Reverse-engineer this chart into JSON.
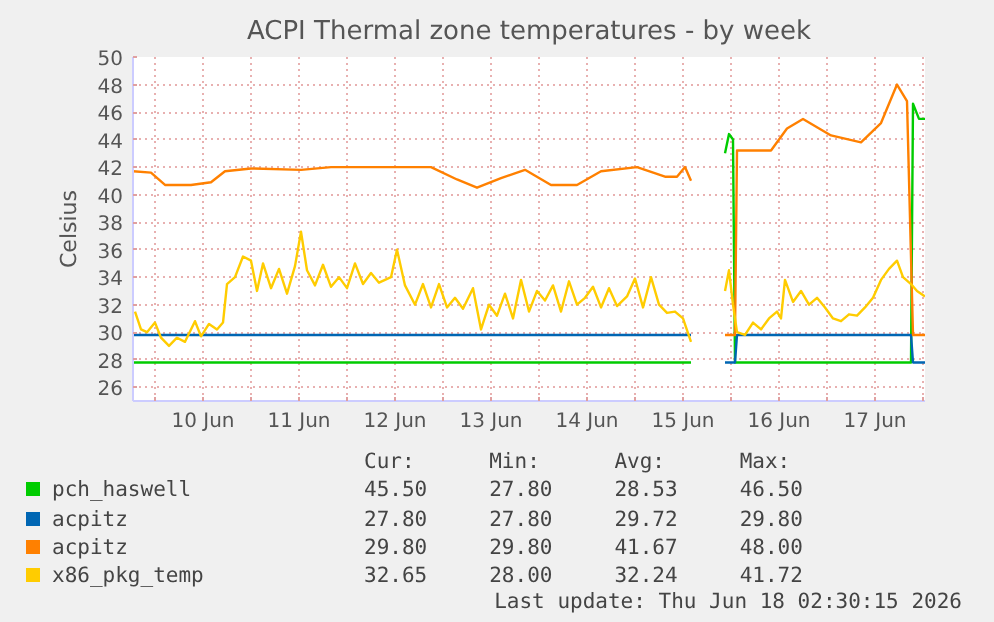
{
  "chart_data": {
    "type": "line",
    "title": "ACPI Thermal zone temperatures - by week",
    "ylabel": "Celsius",
    "xlim": [
      "2026-06-09T18:30",
      "2026-06-18T00:30"
    ],
    "xticks": [
      {
        "value": "2026-06-10T00:00",
        "label": null
      },
      {
        "value": "2026-06-10T12:00",
        "label": "10 Jun"
      },
      {
        "value": "2026-06-11T00:00",
        "label": null
      },
      {
        "value": "2026-06-11T12:00",
        "label": "11 Jun"
      },
      {
        "value": "2026-06-12T00:00",
        "label": null
      },
      {
        "value": "2026-06-12T12:00",
        "label": "12 Jun"
      },
      {
        "value": "2026-06-13T00:00",
        "label": null
      },
      {
        "value": "2026-06-13T12:00",
        "label": "13 Jun"
      },
      {
        "value": "2026-06-14T00:00",
        "label": null
      },
      {
        "value": "2026-06-14T12:00",
        "label": "14 Jun"
      },
      {
        "value": "2026-06-15T00:00",
        "label": null
      },
      {
        "value": "2026-06-15T12:00",
        "label": "15 Jun"
      },
      {
        "value": "2026-06-16T00:00",
        "label": null
      },
      {
        "value": "2026-06-16T12:00",
        "label": "16 Jun"
      },
      {
        "value": "2026-06-17T00:00",
        "label": null
      },
      {
        "value": "2026-06-17T12:00",
        "label": "17 Jun"
      },
      {
        "value": "2026-06-18T00:00",
        "label": null
      }
    ],
    "ylim": [
      25,
      50
    ],
    "yticks": [
      26,
      28,
      30,
      32,
      34,
      36,
      38,
      40,
      42,
      44,
      46,
      48,
      50
    ],
    "grid": true,
    "legend": "bottom",
    "marker": "none",
    "line_style": "solid",
    "series": [
      {
        "name": "pch_haswell",
        "color": "#00cc00",
        "x": [
          "2026-06-09T18:30",
          "2026-06-15T14:00",
          "2026-06-15T18:00",
          "2026-06-15T22:30",
          "2026-06-15T23:30",
          "2026-06-16T00:30",
          "2026-06-16T01:00",
          "2026-06-17T21:00",
          "2026-06-17T21:30",
          "2026-06-17T23:00",
          "2026-06-18T00:30"
        ],
        "values": [
          27.8,
          27.8,
          null,
          43.0,
          44.4,
          44.0,
          27.8,
          27.8,
          46.6,
          45.5,
          45.5
        ]
      },
      {
        "name": "acpitz",
        "color": "#0066b3",
        "x": [
          "2026-06-09T18:30",
          "2026-06-15T14:00",
          "2026-06-15T18:00",
          "2026-06-15T22:30",
          "2026-06-16T01:00",
          "2026-06-16T01:30",
          "2026-06-17T21:00",
          "2026-06-17T21:30",
          "2026-06-18T00:30"
        ],
        "values": [
          29.8,
          29.8,
          null,
          27.8,
          27.8,
          29.8,
          29.8,
          27.8,
          27.8
        ]
      },
      {
        "name": "acpitz",
        "color": "#ff8000",
        "x": [
          "2026-06-09T18:30",
          "2026-06-09T23:00",
          "2026-06-10T02:30",
          "2026-06-10T09:00",
          "2026-06-10T14:00",
          "2026-06-10T17:30",
          "2026-06-11T00:00",
          "2026-06-11T12:30",
          "2026-06-11T20:00",
          "2026-06-12T21:00",
          "2026-06-13T03:30",
          "2026-06-13T08:30",
          "2026-06-13T14:30",
          "2026-06-13T20:30",
          "2026-06-14T03:00",
          "2026-06-14T09:30",
          "2026-06-14T15:30",
          "2026-06-15T00:30",
          "2026-06-15T07:30",
          "2026-06-15T10:30",
          "2026-06-15T12:30",
          "2026-06-15T14:00",
          "2026-06-15T18:00",
          "2026-06-15T22:30",
          "2026-06-16T01:00",
          "2026-06-16T01:30",
          "2026-06-16T10:00",
          "2026-06-16T14:00",
          "2026-06-16T18:00",
          "2026-06-17T01:00",
          "2026-06-17T08:30",
          "2026-06-17T13:30",
          "2026-06-17T17:30",
          "2026-06-17T20:00",
          "2026-06-17T21:30",
          "2026-06-18T00:30"
        ],
        "values": [
          41.7,
          41.6,
          40.7,
          40.7,
          40.9,
          41.7,
          41.9,
          41.8,
          42.0,
          42.0,
          41.1,
          40.5,
          41.2,
          41.8,
          40.7,
          40.7,
          41.7,
          42.0,
          41.3,
          41.3,
          42.0,
          41.0,
          null,
          29.8,
          29.8,
          43.2,
          43.2,
          44.8,
          45.5,
          44.3,
          43.8,
          45.2,
          48.0,
          46.8,
          29.8,
          29.8
        ]
      },
      {
        "name": "x86_pkg_temp",
        "color": "#ffcc00",
        "x": [
          "2026-06-09T19:00",
          "2026-06-09T20:30",
          "2026-06-09T22:00",
          "2026-06-10T00:00",
          "2026-06-10T01:30",
          "2026-06-10T03:30",
          "2026-06-10T05:30",
          "2026-06-10T07:30",
          "2026-06-10T10:00",
          "2026-06-10T11:30",
          "2026-06-10T13:30",
          "2026-06-10T15:30",
          "2026-06-10T17:00",
          "2026-06-10T18:00",
          "2026-06-10T20:00",
          "2026-06-10T22:00",
          "2026-06-11T00:00",
          "2026-06-11T01:30",
          "2026-06-11T03:00",
          "2026-06-11T05:00",
          "2026-06-11T07:00",
          "2026-06-11T09:00",
          "2026-06-11T11:00",
          "2026-06-11T12:30",
          "2026-06-11T14:00",
          "2026-06-11T16:00",
          "2026-06-11T18:00",
          "2026-06-11T20:00",
          "2026-06-11T22:00",
          "2026-06-12T00:00",
          "2026-06-12T02:00",
          "2026-06-12T04:00",
          "2026-06-12T06:00",
          "2026-06-12T08:00",
          "2026-06-12T11:00",
          "2026-06-12T12:30",
          "2026-06-12T14:30",
          "2026-06-12T17:00",
          "2026-06-12T19:00",
          "2026-06-12T21:00",
          "2026-06-12T23:00",
          "2026-06-13T01:00",
          "2026-06-13T03:00",
          "2026-06-13T05:00",
          "2026-06-13T07:30",
          "2026-06-13T09:30",
          "2026-06-13T11:30",
          "2026-06-13T13:30",
          "2026-06-13T15:30",
          "2026-06-13T17:30",
          "2026-06-13T19:30",
          "2026-06-13T21:30",
          "2026-06-13T23:30",
          "2026-06-14T01:30",
          "2026-06-14T03:30",
          "2026-06-14T05:30",
          "2026-06-14T07:30",
          "2026-06-14T09:30",
          "2026-06-14T11:30",
          "2026-06-14T13:30",
          "2026-06-14T15:30",
          "2026-06-14T17:30",
          "2026-06-14T19:30",
          "2026-06-14T22:00",
          "2026-06-15T00:00",
          "2026-06-15T02:00",
          "2026-06-15T04:00",
          "2026-06-15T06:00",
          "2026-06-15T08:00",
          "2026-06-15T10:00",
          "2026-06-15T12:00",
          "2026-06-15T14:00",
          "2026-06-15T18:00",
          "2026-06-15T22:30",
          "2026-06-15T23:30",
          "2026-06-16T00:30",
          "2026-06-16T01:30",
          "2026-06-16T03:30",
          "2026-06-16T05:30",
          "2026-06-16T07:30",
          "2026-06-16T09:30",
          "2026-06-16T11:30",
          "2026-06-16T12:30",
          "2026-06-16T13:30",
          "2026-06-16T15:30",
          "2026-06-16T17:30",
          "2026-06-16T19:30",
          "2026-06-16T21:30",
          "2026-06-16T23:30",
          "2026-06-17T01:30",
          "2026-06-17T03:30",
          "2026-06-17T05:30",
          "2026-06-17T07:30",
          "2026-06-17T09:30",
          "2026-06-17T11:30",
          "2026-06-17T13:30",
          "2026-06-17T15:30",
          "2026-06-17T17:30",
          "2026-06-17T19:00",
          "2026-06-17T21:00",
          "2026-06-17T22:30",
          "2026-06-18T00:30"
        ],
        "values": [
          31.5,
          30.2,
          30.0,
          30.7,
          29.6,
          29.0,
          29.6,
          29.3,
          30.8,
          29.7,
          30.6,
          30.2,
          30.7,
          33.5,
          34.0,
          35.5,
          35.2,
          33.0,
          35.0,
          33.2,
          34.6,
          32.8,
          34.8,
          37.3,
          34.5,
          33.4,
          34.9,
          33.3,
          34.0,
          33.2,
          35.0,
          33.5,
          34.3,
          33.6,
          34.0,
          36.0,
          33.4,
          32.0,
          33.5,
          31.8,
          33.5,
          31.8,
          32.5,
          31.7,
          33.2,
          30.2,
          32.0,
          31.2,
          32.8,
          31.0,
          33.8,
          31.5,
          33.0,
          32.3,
          33.4,
          31.5,
          33.7,
          32.0,
          32.5,
          33.3,
          31.8,
          33.2,
          31.9,
          32.6,
          33.9,
          31.8,
          34.0,
          32.0,
          31.4,
          31.5,
          31.0,
          29.3,
          null,
          33.0,
          34.5,
          32.0,
          30.0,
          29.8,
          30.7,
          30.2,
          31.0,
          31.5,
          31.0,
          33.8,
          32.2,
          33.0,
          32.0,
          32.5,
          31.8,
          31.0,
          30.8,
          31.3,
          31.2,
          31.8,
          32.5,
          33.8,
          34.6,
          35.2,
          34.0,
          33.5,
          33.0,
          32.6
        ]
      }
    ],
    "annotations": [
      "Cur:",
      "Min:",
      "Avg:",
      "Max:",
      "45.50",
      "27.80",
      "28.53",
      "46.50",
      "27.80",
      "27.80",
      "29.72",
      "29.80",
      "29.80",
      "29.80",
      "41.67",
      "48.00",
      "32.65",
      "28.00",
      "32.24",
      "41.72",
      "Last update: Thu Jun 18 02:30:15 2026"
    ]
  }
}
